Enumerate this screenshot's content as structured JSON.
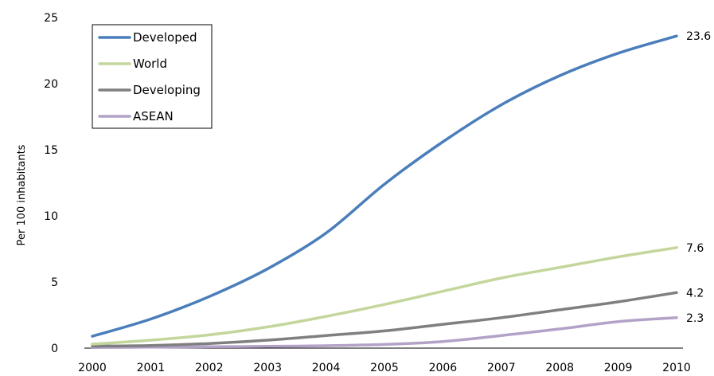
{
  "chart_data": {
    "type": "line",
    "title": "",
    "xlabel": "",
    "ylabel": "Per 100 inhabitants",
    "x": [
      "2000",
      "2001",
      "2002",
      "2003",
      "2004",
      "2005",
      "2006",
      "2007",
      "2008",
      "2009",
      "2010"
    ],
    "ylim": [
      0,
      25
    ],
    "yticks": [
      "0",
      "5",
      "10",
      "15",
      "20",
      "25"
    ],
    "grid": false,
    "legend_position": "top-left",
    "series": [
      {
        "name": "Developed",
        "color": "#4a7ebb",
        "values": [
          0.9,
          2.2,
          3.9,
          6.0,
          8.7,
          12.4,
          15.6,
          18.4,
          20.6,
          22.3,
          23.6
        ],
        "end_label": "23.6"
      },
      {
        "name": "World",
        "color": "#c3d69b",
        "values": [
          0.3,
          0.6,
          1.0,
          1.6,
          2.4,
          3.3,
          4.3,
          5.3,
          6.1,
          6.9,
          7.6
        ],
        "end_label": "7.6"
      },
      {
        "name": "Developing",
        "color": "#7f7f7f",
        "values": [
          0.15,
          0.2,
          0.35,
          0.6,
          0.95,
          1.3,
          1.8,
          2.3,
          2.9,
          3.5,
          4.2
        ],
        "end_label": "4.2"
      },
      {
        "name": "ASEAN",
        "color": "#b3a2c7",
        "values": [
          0.05,
          0.07,
          0.1,
          0.13,
          0.18,
          0.28,
          0.5,
          0.95,
          1.45,
          2.0,
          2.3
        ],
        "end_label": "2.3"
      }
    ]
  }
}
